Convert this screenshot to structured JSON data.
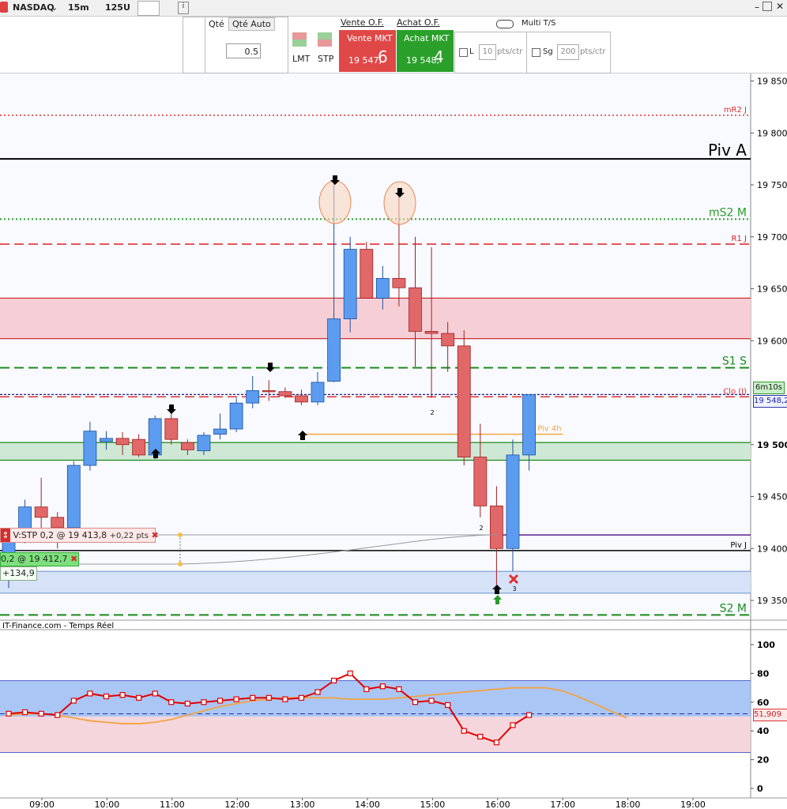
{
  "toolbar": {
    "symbol": "NASDAQ",
    "period": "15m",
    "units": "125U"
  },
  "order_panel": {
    "qty_label": "Qté",
    "qty_auto": "Qté Auto",
    "qty": "0.5",
    "lmt": "LMT",
    "stp": "STP",
    "sell_of": "Vente O.F.",
    "buy_of": "Achat O.F.",
    "sell_mkt": "Vente MKT",
    "sell_price": "19 547,",
    "sell_price_last": "6",
    "buy_mkt": "Achat MKT",
    "buy_price": "19 548,",
    "buy_price_last": "4",
    "multi": "Multi T/S",
    "l_label": "L",
    "l_value": "10",
    "l_unit": "pts/ctr",
    "sg_label": "Sg",
    "sg_value": "200",
    "sg_unit": "pts/ctr"
  },
  "source": "IT-Finance.com - Temps Réel",
  "timer": "6m10s",
  "positions": {
    "stop": {
      "label": "V:STP 0,2 @ 19 413,8",
      "pnl": "+0,22 pts"
    },
    "entry": {
      "label": "0,2 @ 19 412,7",
      "pnl": "+134,9"
    }
  },
  "chart_data": [
    {
      "type": "candlestick",
      "open": [
        19392,
        19413,
        19440,
        19430,
        19420,
        19480,
        19503,
        19506,
        19505,
        19490,
        19525,
        19502,
        19494,
        19510,
        19515,
        19540,
        19552,
        19551,
        19547,
        19541,
        19561,
        19621,
        19688,
        19641,
        19660,
        19651,
        19609,
        19607,
        19595,
        19488,
        19441,
        19400,
        19490
      ],
      "high": [
        19420,
        19447,
        19468,
        19435,
        19484,
        19522,
        19513,
        19512,
        19510,
        19528,
        19530,
        19505,
        19512,
        19530,
        19545,
        19566,
        19562,
        19555,
        19553,
        19570,
        19755,
        19700,
        19695,
        19672,
        19742,
        19700,
        19690,
        19618,
        19610,
        19520,
        19460,
        19505,
        19548
      ],
      "low": [
        19362,
        19405,
        19420,
        19400,
        19415,
        19475,
        19495,
        19490,
        19488,
        19486,
        19500,
        19490,
        19490,
        19505,
        19512,
        19535,
        19542,
        19545,
        19538,
        19538,
        19560,
        19608,
        19641,
        19630,
        19633,
        19575,
        19545,
        19570,
        19480,
        19430,
        19365,
        19378,
        19475
      ],
      "close": [
        19415,
        19440,
        19430,
        19420,
        19480,
        19513,
        19506,
        19500,
        19490,
        19525,
        19505,
        19495,
        19509,
        19515,
        19540,
        19552,
        19551,
        19547,
        19541,
        19560,
        19621,
        19688,
        19641,
        19660,
        19651,
        19609,
        19607,
        19595,
        19488,
        19441,
        19400,
        19490,
        19548
      ],
      "up_color": "#5b9cf0",
      "down_color": "#e06868",
      "ylim": [
        19331,
        19858
      ],
      "yticks": [
        {
          "value": 19850,
          "label": "19 850"
        },
        {
          "value": 19800,
          "label": "19 800"
        },
        {
          "value": 19750,
          "label": "19 750"
        },
        {
          "value": 19700,
          "label": "19 700"
        },
        {
          "value": 19650,
          "label": "19 650"
        },
        {
          "value": 19600,
          "label": "19 600"
        },
        {
          "value": 19500,
          "label": "19 500"
        },
        {
          "value": 19450,
          "label": "19 450"
        },
        {
          "value": 19400,
          "label": "19 400"
        },
        {
          "value": 19350,
          "label": "19 350"
        }
      ],
      "xticks": [
        "09:00",
        "10:00",
        "11:00",
        "12:00",
        "13:00",
        "14:00",
        "15:00",
        "16:00",
        "17:00",
        "18:00",
        "19:00"
      ],
      "levels": [
        {
          "label": "mR2 J",
          "value": 19817,
          "color": "#e03030",
          "style": "dotted",
          "weight": "minor"
        },
        {
          "label": "Piv A",
          "value": 19775,
          "color": "#000000",
          "style": "solid",
          "weight": "major"
        },
        {
          "label": "mS2 M",
          "value": 19717,
          "color": "#2a9a2a",
          "style": "dotted",
          "weight": "medium"
        },
        {
          "label": "R1 J",
          "value": 19693,
          "color": "#e02020",
          "style": "dashed",
          "weight": "minor"
        },
        {
          "label": "S1 S",
          "value": 19574,
          "color": "#1a8a1a",
          "style": "dashed",
          "weight": "medium"
        },
        {
          "label": "Clo (J)",
          "value": 19546,
          "color": "#e03030",
          "style": "dashed",
          "weight": "minor"
        },
        {
          "label": "Piv 4h",
          "value": 19510,
          "color": "#f5a540",
          "style": "solid",
          "weight": "minor",
          "start": "13:00",
          "end": "17:00"
        },
        {
          "value": 19413,
          "color": "#5b1f8f",
          "style": "solid",
          "weight": "minor",
          "start": "16:00"
        },
        {
          "label": "Piv J",
          "value": 19398,
          "color": "#000000",
          "style": "solid",
          "weight": "minor"
        },
        {
          "label": "S2 M",
          "value": 19336,
          "color": "#1a8a1a",
          "style": "dashed",
          "weight": "medium"
        }
      ],
      "zones": [
        {
          "lo": 19602,
          "hi": 19641,
          "fill": "#f6cfd6",
          "color": "#d03030"
        },
        {
          "lo": 19485,
          "hi": 19502,
          "fill": "#cfe8d5",
          "color": "#1a8a1a"
        },
        {
          "lo": 19357,
          "hi": 19378,
          "fill": "#d5e2f7",
          "color": "#7a9ad0"
        }
      ],
      "last_price": {
        "value": 19548.2,
        "label": "19 548,2",
        "color": "#1a1a8a"
      },
      "annotations": [
        "2",
        "2",
        "3"
      ]
    },
    {
      "type": "line",
      "series": [
        {
          "color": "#e00000",
          "markers": true,
          "values": [
            52,
            53,
            52,
            51,
            61,
            66,
            64,
            65,
            63,
            66,
            60,
            59,
            60,
            61,
            62,
            63,
            63,
            62,
            63,
            67,
            75,
            80,
            69,
            71,
            69,
            60,
            61,
            58,
            40,
            36,
            32,
            44,
            51
          ]
        },
        {
          "color": "#f4a340",
          "markers": false,
          "values": [
            51,
            52,
            52,
            51,
            49,
            47,
            46,
            45,
            45,
            46,
            48,
            51,
            54,
            57,
            59,
            61,
            62,
            63,
            63,
            63,
            63,
            62,
            62,
            62,
            63,
            64,
            65,
            66,
            67,
            68,
            69,
            70,
            70,
            70,
            68,
            64,
            59,
            54,
            49
          ]
        }
      ],
      "ylim": [
        -6.6,
        110.4
      ],
      "yticks": [
        100,
        80,
        60,
        40,
        20,
        0
      ],
      "bands": [
        {
          "lo": 50,
          "hi": 75,
          "color": "#8db3f2"
        },
        {
          "lo": 25,
          "hi": 50,
          "color": "#f2c8d0"
        }
      ],
      "reference": {
        "value": 51.909,
        "label": "51,909",
        "color": "#2233aa"
      }
    }
  ]
}
